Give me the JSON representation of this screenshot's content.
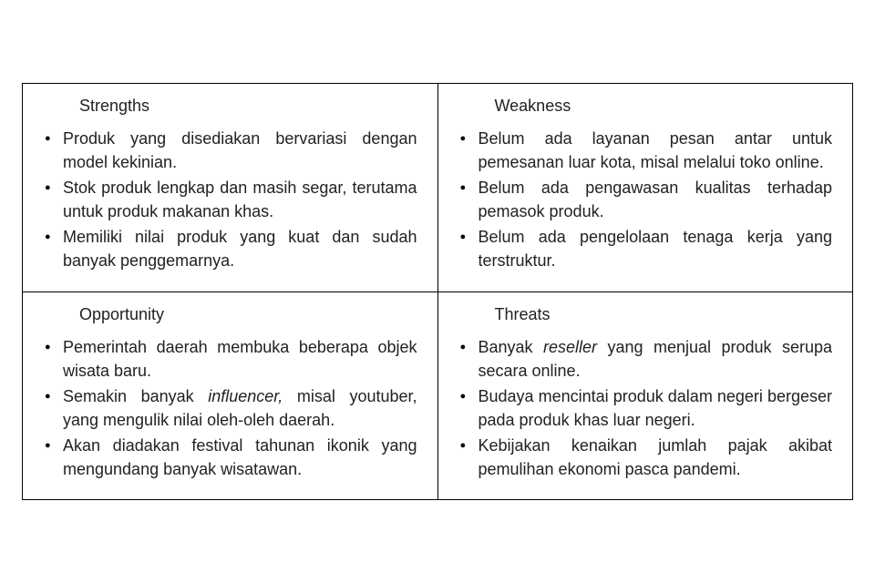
{
  "type": "table",
  "layout": {
    "rows": 2,
    "cols": 2,
    "border_color": "#000000",
    "border_width": 1.5,
    "background_color": "#ffffff"
  },
  "typography": {
    "title_fontsize": 18,
    "body_fontsize": 18,
    "font_family": "Arial",
    "text_color": "#222222",
    "text_align": "justify",
    "line_height": 1.45
  },
  "bullet": {
    "glyph": "●",
    "color": "#000000",
    "size": 11
  },
  "cells": {
    "strengths": {
      "title": "Strengths",
      "items": [
        {
          "pre": "Produk yang disediakan bervariasi dengan model kekinian."
        },
        {
          "pre": "Stok produk lengkap dan masih segar, terutama untuk produk makanan khas."
        },
        {
          "pre": "Memiliki nilai produk yang kuat dan sudah banyak penggemarnya."
        }
      ]
    },
    "weakness": {
      "title": "Weakness",
      "items": [
        {
          "pre": "Belum ada layanan pesan antar untuk pemesanan luar kota, misal melalui toko online."
        },
        {
          "pre": "Belum ada pengawasan kualitas terhadap pemasok produk."
        },
        {
          "pre": "Belum ada pengelolaan tenaga kerja yang terstruktur."
        }
      ]
    },
    "opportunity": {
      "title": "Opportunity",
      "items": [
        {
          "pre": "Pemerintah daerah membuka beberapa objek wisata baru."
        },
        {
          "pre": "Semakin banyak ",
          "italic": "influencer,",
          "post": " misal youtuber, yang mengulik nilai oleh-oleh daerah."
        },
        {
          "pre": "Akan diadakan festival tahunan ikonik yang mengundang banyak wisatawan."
        }
      ]
    },
    "threats": {
      "title": "Threats",
      "items": [
        {
          "pre": "Banyak ",
          "italic": "reseller",
          "post": " yang menjual produk serupa secara online."
        },
        {
          "pre": "Budaya mencintai produk dalam negeri bergeser pada produk khas luar negeri."
        },
        {
          "pre": "Kebijakan kenaikan jumlah pajak akibat pemulihan ekonomi pasca pandemi."
        }
      ]
    }
  }
}
